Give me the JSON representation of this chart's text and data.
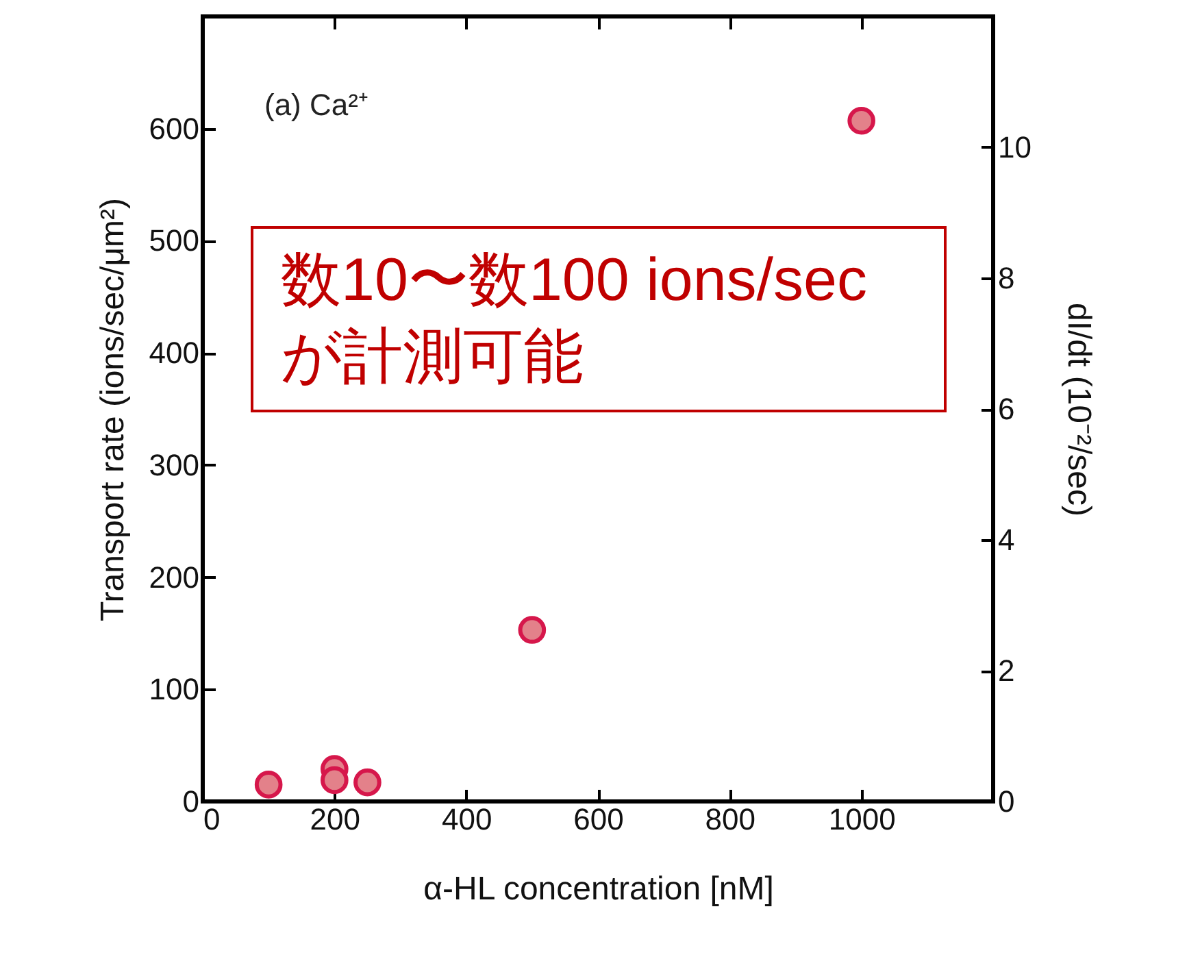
{
  "chart_data": {
    "type": "scatter",
    "xlabel": "α-HL concentration [nM]",
    "ylabel": "Transport rate (ions/sec/μm²)",
    "y2label": "dI/dt (10⁻²/sec)",
    "x": [
      100,
      200,
      200,
      250,
      500,
      1000
    ],
    "series": [
      {
        "color": "#e3818a",
        "values": [
          15,
          29,
          19,
          17,
          153,
          607
        ]
      }
    ],
    "xlim": [
      0,
      1200
    ],
    "xticks": [
      0,
      200,
      400,
      600,
      800,
      1000
    ],
    "ylim": [
      0,
      700
    ],
    "yticks": [
      0,
      100,
      200,
      300,
      400,
      500,
      600
    ],
    "y2lim": [
      0,
      12
    ],
    "y2ticks": [
      0,
      2,
      4,
      6,
      8,
      10
    ],
    "marker": "circle",
    "annotations": [
      "(a) Ca²⁺",
      "数10〜数100 ions/sec\nが計測可能"
    ]
  }
}
